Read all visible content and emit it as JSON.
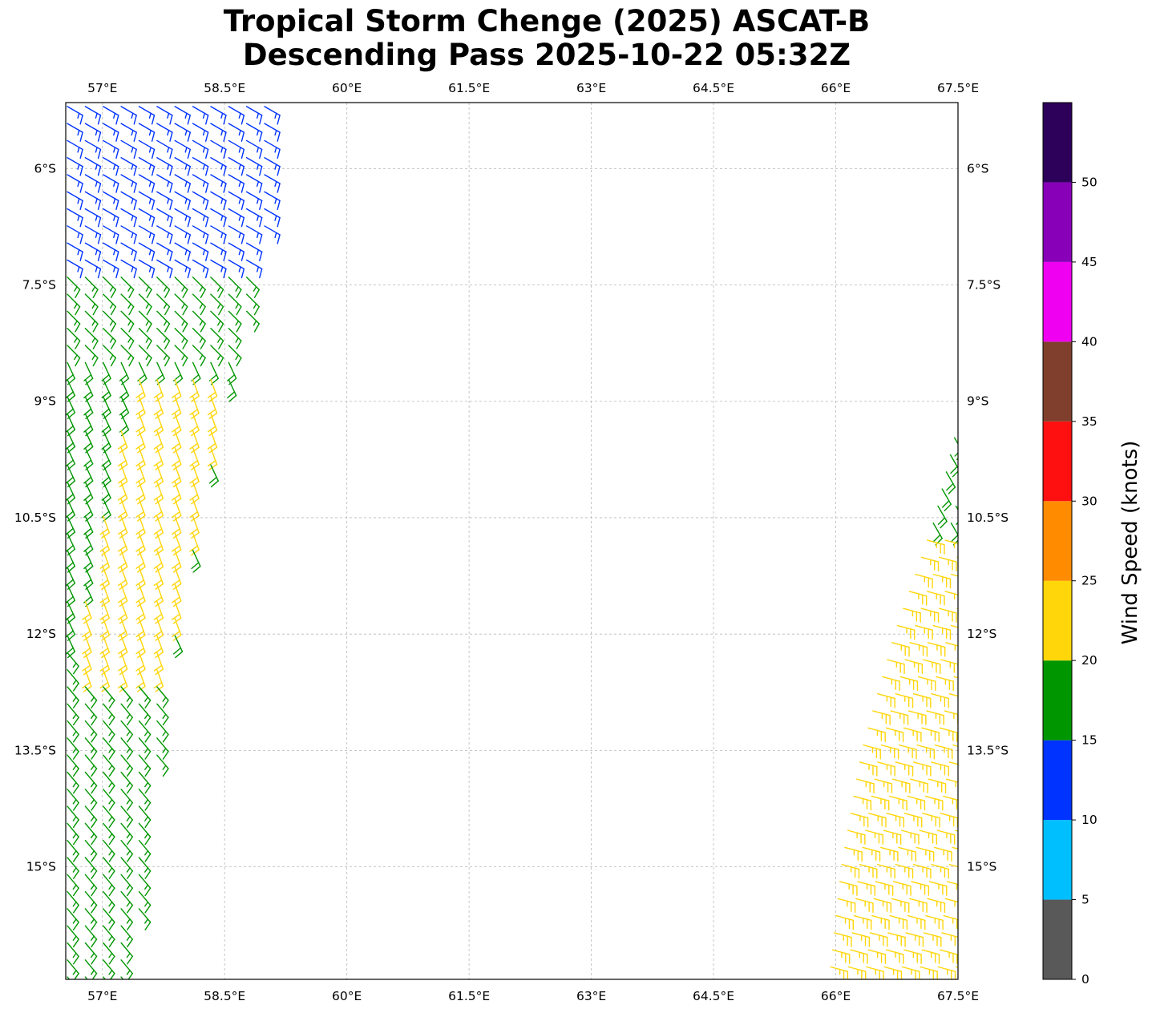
{
  "title": {
    "line1": "Tropical Storm Chenge (2025) ASCAT-B",
    "line2": "Descending Pass 2025-10-22 05:32Z"
  },
  "map": {
    "lon_range": [
      56.55,
      67.5
    ],
    "lat_range": [
      -16.45,
      -5.15
    ],
    "grid": true,
    "lon_ticks": [
      57,
      58.5,
      60,
      61.5,
      63,
      64.5,
      66,
      67.5
    ],
    "lon_tick_labels": [
      "57°E",
      "58.5°E",
      "60°E",
      "61.5°E",
      "63°E",
      "64.5°E",
      "66°E",
      "67.5°E"
    ],
    "lat_ticks": [
      -6,
      -7.5,
      -9,
      -10.5,
      -12,
      -13.5,
      -15
    ],
    "lat_tick_labels": [
      "6°S",
      "7.5°S",
      "9°S",
      "10.5°S",
      "12°S",
      "13.5°S",
      "15°S"
    ]
  },
  "colorbar": {
    "label": "Wind Speed (knots)",
    "range": [
      0,
      55
    ],
    "ticks": [
      0,
      5,
      10,
      15,
      20,
      25,
      30,
      35,
      40,
      45,
      50
    ],
    "bins": [
      {
        "from": 0,
        "to": 5,
        "color": "#595959"
      },
      {
        "from": 5,
        "to": 10,
        "color": "#00bfff"
      },
      {
        "from": 10,
        "to": 15,
        "color": "#0033ff"
      },
      {
        "from": 15,
        "to": 20,
        "color": "#009600"
      },
      {
        "from": 20,
        "to": 25,
        "color": "#ffd60a"
      },
      {
        "from": 25,
        "to": 30,
        "color": "#ff8c00"
      },
      {
        "from": 30,
        "to": 35,
        "color": "#ff1010"
      },
      {
        "from": 35,
        "to": 40,
        "color": "#7f3f2c"
      },
      {
        "from": 40,
        "to": 45,
        "color": "#f000f0"
      },
      {
        "from": 45,
        "to": 50,
        "color": "#8800b8"
      },
      {
        "from": 50,
        "to": 55,
        "color": "#2d005a"
      }
    ]
  },
  "swaths": [
    {
      "name": "west swath",
      "lat_range": [
        -16.45,
        -5.15
      ],
      "west_edge_lon": {
        "lat": [
          -5.15,
          -16.45
        ],
        "lon": [
          56.55,
          56.55
        ]
      },
      "east_edge_lon": {
        "lat": [
          -5.15,
          -7.5,
          -9,
          -10.5,
          -12,
          -13.5,
          -15,
          -16.45
        ],
        "lon": [
          59.2,
          58.9,
          58.5,
          58.2,
          57.9,
          57.7,
          57.5,
          57.4
        ]
      },
      "segments": [
        {
          "lat_from": -5.15,
          "lat_to": -7.2,
          "speed_kt": 13,
          "dir_deg": 120
        },
        {
          "lat_from": -7.2,
          "lat_to": -8.4,
          "speed_kt": 17,
          "dir_deg": 135
        },
        {
          "lat_from": -8.4,
          "lat_to": -12.2,
          "speed_kt": 18,
          "dir_deg": 155
        },
        {
          "lat_from": -12.2,
          "lat_to": -16.45,
          "speed_kt": 17,
          "dir_deg": 140
        },
        {
          "lat_from": -8.7,
          "lat_to": -12.5,
          "speed_kt": 22,
          "dir_deg": 160,
          "lon_min_offset": 0.35
        }
      ]
    },
    {
      "name": "east swath",
      "lat_range": [
        -16.45,
        -9.2
      ],
      "west_edge_lon": {
        "lat": [
          -9.2,
          -10.5,
          -12,
          -13.5,
          -15,
          -16.45
        ],
        "lon": [
          67.5,
          67.2,
          66.7,
          66.3,
          66.05,
          65.9
        ]
      },
      "east_edge_lon": {
        "lat": [
          -9.2,
          -16.45
        ],
        "lon": [
          67.5,
          67.5
        ]
      },
      "segments": [
        {
          "lat_from": -9.2,
          "lat_to": -10.6,
          "speed_kt": 18,
          "dir_deg": 150
        },
        {
          "lat_from": -10.6,
          "lat_to": -16.45,
          "speed_kt": 23,
          "dir_deg": 105
        }
      ]
    }
  ]
}
